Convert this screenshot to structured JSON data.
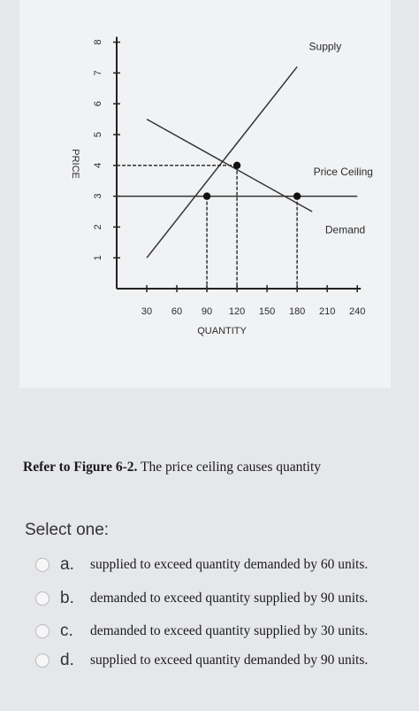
{
  "chart_data": {
    "type": "line",
    "xlabel": "QUANTITY",
    "ylabel": "PRICE",
    "x_ticks": [
      "30",
      "60",
      "90",
      "120",
      "150",
      "180",
      "210",
      "240"
    ],
    "y_ticks": [
      "1",
      "2",
      "3",
      "4",
      "5",
      "6",
      "7",
      "8"
    ],
    "xlim": [
      0,
      240
    ],
    "ylim": [
      0,
      8
    ],
    "series": [
      {
        "name": "Supply",
        "x": [
          30,
          180
        ],
        "y": [
          1,
          7.2
        ]
      },
      {
        "name": "Demand",
        "x": [
          30,
          195
        ],
        "y": [
          5.5,
          2.5
        ]
      }
    ],
    "price_ceiling": {
      "name": "Price Ceiling",
      "price": 3
    },
    "points": [
      {
        "x": 120,
        "y": 4
      },
      {
        "x": 90,
        "y": 3
      },
      {
        "x": 180,
        "y": 3
      }
    ],
    "grid": false
  },
  "question": {
    "bold": "Refer to Figure 6-2.",
    "text": " The price ceiling causes quantity"
  },
  "select_label": "Select one:",
  "options": [
    {
      "letter": "a.",
      "text": "supplied to exceed quantity demanded by 60 units."
    },
    {
      "letter": "b.",
      "text": "demanded to exceed quantity supplied by 90 units."
    },
    {
      "letter": "c.",
      "text": "demanded to exceed quantity supplied by 30 units."
    },
    {
      "letter": "d.",
      "text": "supplied to exceed quantity demanded by 90 units."
    }
  ]
}
